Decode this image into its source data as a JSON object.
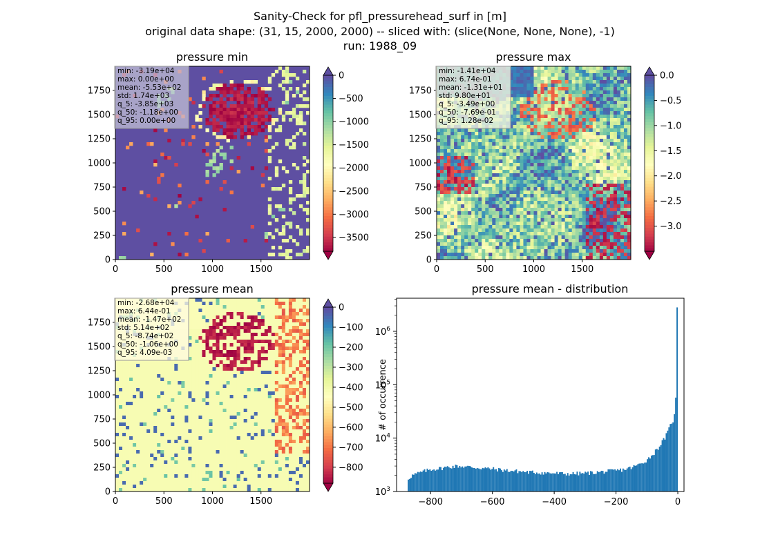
{
  "figure": {
    "title_lines": [
      "Sanity-Check for pfl_pressurehead_surf in [m]",
      "original data shape: (31, 15, 2000, 2000) -- sliced with: (slice(None, None, None), -1)",
      "run: 1988_09"
    ]
  },
  "colors": {
    "spectral": [
      "#9e0142",
      "#d53e4f",
      "#f46d43",
      "#fdae61",
      "#fee08b",
      "#ffffbf",
      "#e6f598",
      "#abdda4",
      "#66c2a5",
      "#3288bd",
      "#5e4fa2"
    ],
    "hist_bar": "#1f77b4"
  },
  "chart_data": [
    {
      "type": "heatmap",
      "title": "pressure min",
      "xlim": [
        0,
        2000
      ],
      "ylim": [
        0,
        2000
      ],
      "xticks": [
        0,
        500,
        1000,
        1500
      ],
      "yticks": [
        0,
        250,
        500,
        750,
        1000,
        1250,
        1500,
        1750
      ],
      "colorbar": {
        "vmin": -3800,
        "vmax": 0,
        "ticks": [
          "0",
          "−500",
          "−1000",
          "−1500",
          "−2000",
          "−2500",
          "−3000",
          "−3500"
        ],
        "tick_values": [
          0,
          -500,
          -1000,
          -1500,
          -2000,
          -2500,
          -3000,
          -3500
        ],
        "extend": "both",
        "cmap": "Spectral"
      },
      "stats": [
        "min: -3.19e+04",
        "max: 0.00e+00",
        "mean: -5.53e+02",
        "std: 1.74e+03",
        "q_5: -3.85e+03",
        "q_50: -1.18e+00",
        "q_95: 0.00e+00"
      ]
    },
    {
      "type": "heatmap",
      "title": "pressure max",
      "xlim": [
        0,
        2000
      ],
      "ylim": [
        0,
        2000
      ],
      "xticks": [
        0,
        500,
        1000,
        1500
      ],
      "yticks": [
        0,
        250,
        500,
        750,
        1000,
        1250,
        1500,
        1750
      ],
      "colorbar": {
        "vmin": -3.5,
        "vmax": 0.0,
        "ticks": [
          "0.0",
          "−0.5",
          "−1.0",
          "−1.5",
          "−2.0",
          "−2.5",
          "−3.0"
        ],
        "tick_values": [
          0.0,
          -0.5,
          -1.0,
          -1.5,
          -2.0,
          -2.5,
          -3.0
        ],
        "extend": "both",
        "cmap": "Spectral"
      },
      "stats": [
        "min: -1.41e+04",
        "max: 6.74e-01",
        "mean: -1.31e+01",
        "std: 9.80e+01",
        "q_5: -3.49e+00",
        "q_50: -7.69e-01",
        "q_95: 1.28e-02"
      ]
    },
    {
      "type": "heatmap",
      "title": "pressure mean",
      "xlim": [
        0,
        2000
      ],
      "ylim": [
        0,
        2000
      ],
      "xticks": [
        0,
        500,
        1000,
        1500
      ],
      "yticks": [
        0,
        250,
        500,
        750,
        1000,
        1250,
        1500,
        1750
      ],
      "colorbar": {
        "vmin": -880,
        "vmax": 0,
        "ticks": [
          "0",
          "−100",
          "−200",
          "−300",
          "−400",
          "−500",
          "−600",
          "−700",
          "−800"
        ],
        "tick_values": [
          0,
          -100,
          -200,
          -300,
          -400,
          -500,
          -600,
          -700,
          -800
        ],
        "extend": "both",
        "cmap": "Spectral"
      },
      "stats": [
        "min: -2.68e+04",
        "max: 6.44e-01",
        "mean: -1.47e+02",
        "std: 5.14e+02",
        "q_5: -8.74e+02",
        "q_50: -1.06e+00",
        "q_95: 4.09e-03"
      ]
    },
    {
      "type": "bar",
      "title": "pressure mean - distribution",
      "ylabel": "# of occurrence",
      "xlabel": "",
      "xlim": [
        -910,
        20
      ],
      "ylim_log10": [
        3,
        6.62
      ],
      "yscale": "log",
      "xticks": [
        -800,
        -600,
        -400,
        -200,
        0
      ],
      "xtick_labels": [
        "−800",
        "−600",
        "−400",
        "−200",
        "0"
      ],
      "yticks_exp": [
        3,
        4,
        5,
        6
      ],
      "bins": {
        "start": -874,
        "end": 0,
        "count": 200
      },
      "profile_points": [
        [
          -874,
          1700
        ],
        [
          -860,
          2000
        ],
        [
          -840,
          2200
        ],
        [
          -820,
          2400
        ],
        [
          -800,
          2600
        ],
        [
          -770,
          2700
        ],
        [
          -740,
          2900
        ],
        [
          -710,
          3000
        ],
        [
          -680,
          2900
        ],
        [
          -650,
          2800
        ],
        [
          -620,
          2700
        ],
        [
          -600,
          2650
        ],
        [
          -560,
          2500
        ],
        [
          -520,
          2400
        ],
        [
          -480,
          2300
        ],
        [
          -440,
          2250
        ],
        [
          -400,
          2200
        ],
        [
          -370,
          2150
        ],
        [
          -340,
          2150
        ],
        [
          -300,
          2200
        ],
        [
          -260,
          2300
        ],
        [
          -220,
          2400
        ],
        [
          -180,
          2550
        ],
        [
          -150,
          2800
        ],
        [
          -120,
          3300
        ],
        [
          -100,
          3900
        ],
        [
          -80,
          5000
        ],
        [
          -60,
          7000
        ],
        [
          -40,
          10500
        ],
        [
          -30,
          14000
        ],
        [
          -20,
          20000
        ],
        [
          -12,
          22000
        ],
        [
          -6,
          60000
        ],
        [
          -2,
          2800000
        ]
      ]
    }
  ]
}
